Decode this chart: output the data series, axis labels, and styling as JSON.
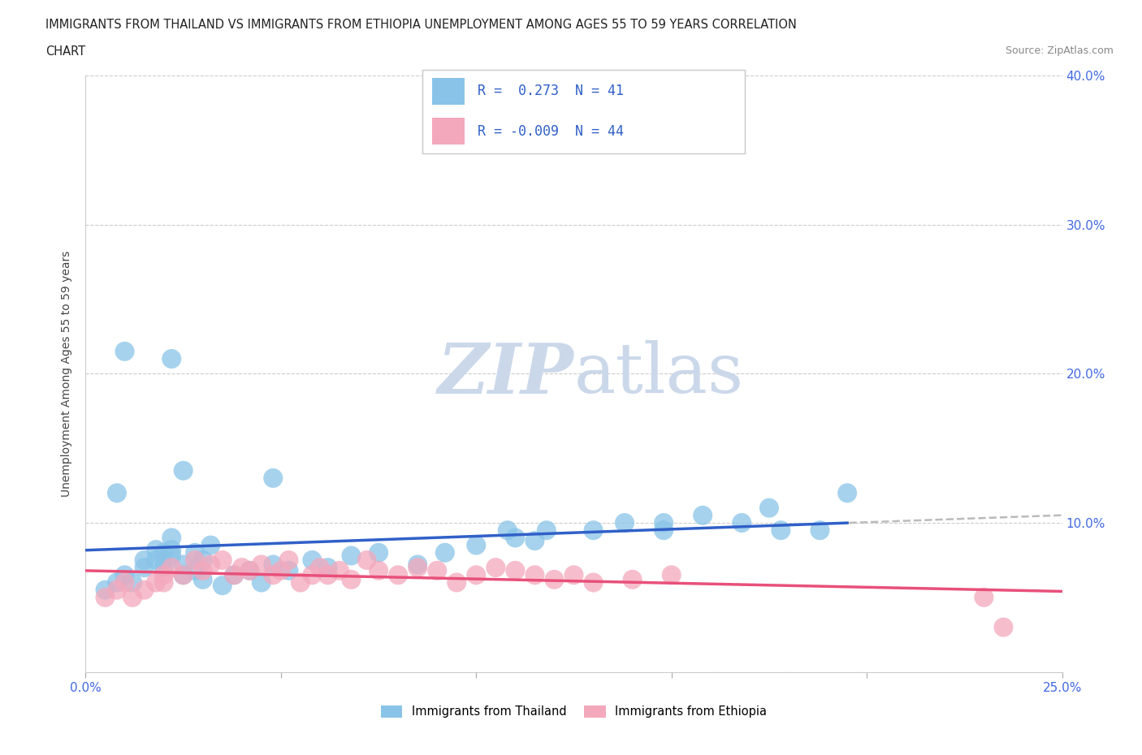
{
  "title_line1": "IMMIGRANTS FROM THAILAND VS IMMIGRANTS FROM ETHIOPIA UNEMPLOYMENT AMONG AGES 55 TO 59 YEARS CORRELATION",
  "title_line2": "CHART",
  "source": "Source: ZipAtlas.com",
  "ylabel": "Unemployment Among Ages 55 to 59 years",
  "xlim": [
    0.0,
    0.25
  ],
  "ylim": [
    0.0,
    0.4
  ],
  "R_thailand": 0.273,
  "N_thailand": 41,
  "R_ethiopia": -0.009,
  "N_ethiopia": 44,
  "color_thailand": "#89C4E8",
  "color_ethiopia": "#F4A8BC",
  "color_line_thailand": "#3060C8",
  "color_line_ethiopia": "#E8507A",
  "color_dashed": "#BBBBBB",
  "background_color": "#ffffff",
  "watermark_color": "#CBD8EA",
  "thailand_x": [
    0.005,
    0.008,
    0.01,
    0.012,
    0.015,
    0.015,
    0.018,
    0.018,
    0.02,
    0.02,
    0.02,
    0.022,
    0.022,
    0.022,
    0.025,
    0.025,
    0.028,
    0.028,
    0.03,
    0.03,
    0.032,
    0.035,
    0.038,
    0.042,
    0.045,
    0.048,
    0.052,
    0.058,
    0.062,
    0.068,
    0.075,
    0.085,
    0.092,
    0.1,
    0.11,
    0.115,
    0.13,
    0.148,
    0.158,
    0.175,
    0.195
  ],
  "thailand_y": [
    0.055,
    0.06,
    0.065,
    0.06,
    0.07,
    0.075,
    0.075,
    0.082,
    0.07,
    0.075,
    0.08,
    0.078,
    0.082,
    0.09,
    0.065,
    0.072,
    0.068,
    0.08,
    0.062,
    0.075,
    0.085,
    0.058,
    0.065,
    0.068,
    0.06,
    0.072,
    0.068,
    0.075,
    0.07,
    0.078,
    0.08,
    0.072,
    0.08,
    0.085,
    0.09,
    0.088,
    0.095,
    0.1,
    0.105,
    0.11,
    0.12
  ],
  "thailand_x2": [
    0.008,
    0.01,
    0.022,
    0.025,
    0.048,
    0.108,
    0.118,
    0.138,
    0.148,
    0.168,
    0.178,
    0.188
  ],
  "thailand_y2": [
    0.12,
    0.215,
    0.21,
    0.135,
    0.13,
    0.095,
    0.095,
    0.1,
    0.095,
    0.1,
    0.095,
    0.095
  ],
  "ethiopia_x": [
    0.005,
    0.008,
    0.01,
    0.012,
    0.015,
    0.018,
    0.02,
    0.02,
    0.022,
    0.025,
    0.028,
    0.03,
    0.032,
    0.035,
    0.038,
    0.04,
    0.042,
    0.045,
    0.048,
    0.05,
    0.052,
    0.055,
    0.058,
    0.06,
    0.062,
    0.065,
    0.068,
    0.072,
    0.075,
    0.08,
    0.085,
    0.09,
    0.095,
    0.1,
    0.105,
    0.11,
    0.115,
    0.12,
    0.125,
    0.13,
    0.14,
    0.15,
    0.23,
    0.235
  ],
  "ethiopia_y": [
    0.05,
    0.055,
    0.06,
    0.05,
    0.055,
    0.06,
    0.065,
    0.06,
    0.07,
    0.065,
    0.075,
    0.068,
    0.072,
    0.075,
    0.065,
    0.07,
    0.068,
    0.072,
    0.065,
    0.068,
    0.075,
    0.06,
    0.065,
    0.07,
    0.065,
    0.068,
    0.062,
    0.075,
    0.068,
    0.065,
    0.07,
    0.068,
    0.06,
    0.065,
    0.07,
    0.068,
    0.065,
    0.062,
    0.065,
    0.06,
    0.062,
    0.065,
    0.05,
    0.03
  ]
}
